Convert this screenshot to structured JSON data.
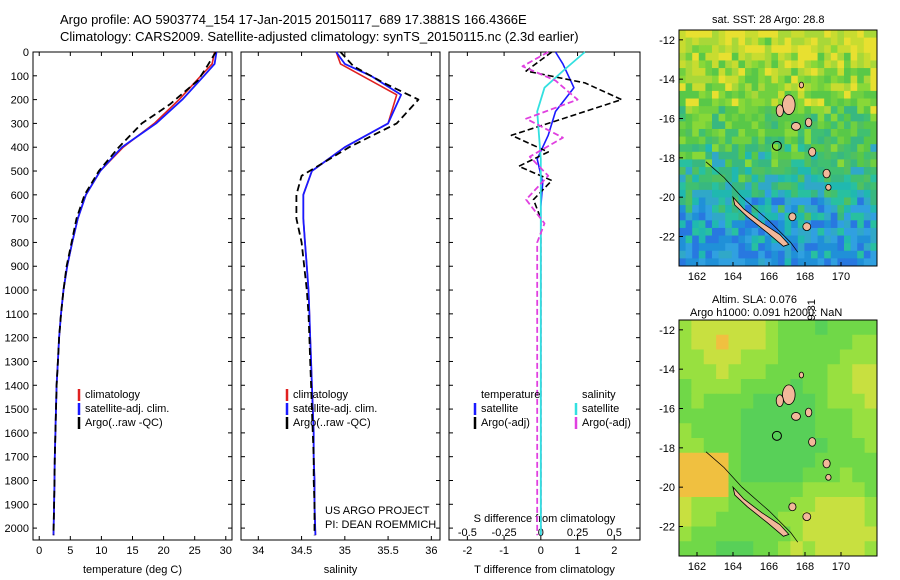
{
  "header": {
    "title_line1": "Argo profile: AO 5903774_154 17-Jan-2015 20150117_689 17.3881S 166.4366E",
    "title_line2": "Climatology: CARS2009. Satellite-adjusted climatology: synTS_20150115.nc (2.3d earlier)"
  },
  "colors": {
    "climatology": "#e02020",
    "satellite": "#1a1aff",
    "argo": "#000000",
    "salinity_satellite": "#33e0e0",
    "salinity_argo": "#e040e0",
    "land": "#f2b89a"
  },
  "chart_data": [
    {
      "type": "line",
      "id": "temperature_profile",
      "xlabel": "temperature (deg C)",
      "xlim": [
        -1,
        31
      ],
      "xticks": [
        0,
        5,
        10,
        15,
        20,
        25,
        30
      ],
      "ylim": [
        2050,
        0
      ],
      "yticks": [
        0,
        100,
        200,
        300,
        400,
        500,
        600,
        700,
        800,
        900,
        1000,
        1100,
        1200,
        1300,
        1400,
        1500,
        1600,
        1700,
        1800,
        1900,
        2000
      ],
      "legend": [
        "climatology",
        "satellite-adj. clim.",
        "Argo(..raw -QC)"
      ],
      "series": [
        {
          "name": "climatology",
          "x": [
            28.2,
            27.8,
            26.0,
            22.5,
            18.5,
            13.5,
            9.8,
            7.5,
            6.2,
            5.3,
            4.5,
            3.9,
            3.5,
            3.2,
            3.0,
            2.8,
            2.7,
            2.6,
            2.5,
            2.45,
            2.4,
            2.3
          ],
          "depth": [
            0,
            50,
            100,
            200,
            300,
            400,
            500,
            600,
            700,
            800,
            900,
            1000,
            1100,
            1200,
            1300,
            1400,
            1500,
            1600,
            1700,
            1800,
            1900,
            2030
          ]
        },
        {
          "name": "satellite-adj. clim.",
          "x": [
            28.5,
            28.2,
            26.5,
            23.0,
            18.8,
            13.3,
            9.8,
            7.5,
            6.2,
            5.3,
            4.5,
            3.9,
            3.5,
            3.2,
            3.0,
            2.8,
            2.7,
            2.6,
            2.5,
            2.45,
            2.4,
            2.3
          ],
          "depth": [
            0,
            50,
            100,
            200,
            300,
            400,
            500,
            600,
            700,
            800,
            900,
            1000,
            1100,
            1200,
            1300,
            1400,
            1500,
            1600,
            1700,
            1800,
            1900,
            2030
          ]
        },
        {
          "name": "Argo(..raw -QC)",
          "x": [
            28.4,
            27.0,
            25.5,
            21.0,
            16.5,
            12.8,
            9.6,
            7.3,
            6.0,
            5.2,
            4.4,
            3.9,
            3.5,
            3.2,
            3.0,
            2.8,
            2.7,
            2.6,
            2.5,
            2.45,
            2.4,
            2.3
          ],
          "depth": [
            0,
            60,
            120,
            220,
            300,
            400,
            500,
            600,
            700,
            800,
            900,
            1000,
            1100,
            1200,
            1300,
            1400,
            1500,
            1600,
            1700,
            1800,
            1900,
            2030
          ]
        }
      ]
    },
    {
      "type": "line",
      "id": "salinity_profile",
      "xlabel": "salinity",
      "xlim": [
        33.8,
        36.1
      ],
      "xticks": [
        34,
        34.5,
        35,
        35.5,
        36
      ],
      "ylim": [
        2050,
        0
      ],
      "legend": [
        "climatology",
        "satellite-adj. clim.",
        "Argo(..raw -QC)"
      ],
      "series": [
        {
          "name": "climatology",
          "x": [
            34.9,
            34.95,
            35.2,
            35.6,
            35.5,
            35.0,
            34.62,
            34.52,
            34.52,
            34.54,
            34.56,
            34.58,
            34.59,
            34.6,
            34.61,
            34.62,
            34.63,
            34.64,
            34.64,
            34.65,
            34.65,
            34.66
          ],
          "depth": [
            0,
            50,
            100,
            180,
            300,
            400,
            500,
            600,
            700,
            800,
            900,
            1000,
            1100,
            1200,
            1300,
            1400,
            1500,
            1600,
            1700,
            1800,
            1900,
            2030
          ]
        },
        {
          "name": "satellite-adj. clim.",
          "x": [
            34.9,
            35.0,
            35.3,
            35.65,
            35.5,
            35.0,
            34.62,
            34.52,
            34.52,
            34.54,
            34.56,
            34.58,
            34.59,
            34.6,
            34.61,
            34.62,
            34.63,
            34.64,
            34.64,
            34.65,
            34.65,
            34.66
          ],
          "depth": [
            0,
            50,
            100,
            180,
            300,
            400,
            500,
            600,
            700,
            800,
            900,
            1000,
            1100,
            1200,
            1300,
            1400,
            1500,
            1600,
            1700,
            1800,
            1900,
            2030
          ]
        },
        {
          "name": "Argo(..raw -QC)",
          "x": [
            34.95,
            35.1,
            35.45,
            35.85,
            35.6,
            35.05,
            34.5,
            34.44,
            34.44,
            34.5,
            34.53,
            34.56,
            34.58,
            34.59,
            34.6,
            34.61,
            34.62,
            34.63,
            34.64,
            34.64,
            34.65,
            34.65
          ],
          "depth": [
            0,
            60,
            130,
            200,
            300,
            400,
            520,
            600,
            700,
            800,
            900,
            1000,
            1100,
            1200,
            1300,
            1400,
            1500,
            1600,
            1700,
            1800,
            1900,
            2030
          ]
        }
      ]
    },
    {
      "type": "line",
      "id": "difference_profile",
      "xlabel": "T difference from climatology",
      "xlabel_top": "S difference from climatology",
      "xlim": [
        -2.5,
        2.7
      ],
      "xticks": [
        -2,
        -1,
        0,
        1,
        2
      ],
      "xticks_top_labels": [
        "-0.5",
        "-0.25",
        "0",
        "0.25",
        "0.5"
      ],
      "xticks_top_pos": [
        -2,
        -1,
        0,
        1,
        2
      ],
      "ylim": [
        2050,
        0
      ],
      "legend_temperature": {
        "heading": "temperature",
        "items": [
          "satellite",
          "Argo(-adj)"
        ]
      },
      "legend_salinity": {
        "heading": "salinity",
        "items": [
          "satellite",
          "Argo(-adj)"
        ]
      },
      "series": [
        {
          "name": "temperature satellite",
          "x": [
            0.4,
            0.6,
            0.9,
            0.4,
            0.2,
            -0.1,
            0.05,
            0,
            0,
            0,
            0,
            0,
            0,
            0,
            0,
            0,
            0,
            0,
            0,
            0,
            0
          ],
          "depth": [
            0,
            50,
            150,
            250,
            350,
            450,
            550,
            650,
            750,
            850,
            950,
            1050,
            1200,
            1350,
            1500,
            1650,
            1800,
            1900,
            1950,
            2000,
            2030
          ]
        },
        {
          "name": "temperature Argo(-adj)",
          "x": [
            0.3,
            -0.4,
            1.2,
            2.2,
            1.0,
            -0.8,
            0.2,
            -0.6,
            0.3,
            -0.2,
            0,
            0,
            0,
            0,
            0,
            0,
            0,
            0,
            0,
            0,
            0
          ],
          "depth": [
            0,
            80,
            130,
            200,
            260,
            350,
            420,
            480,
            540,
            620,
            700,
            800,
            900,
            1000,
            1200,
            1400,
            1600,
            1800,
            1900,
            2000,
            2030
          ]
        },
        {
          "name": "salinity satellite",
          "x": [
            1.2,
            0.6,
            0.1,
            -0.1,
            -0.05,
            0,
            0,
            0,
            0,
            0,
            0,
            0,
            0,
            0,
            0,
            0,
            0,
            0,
            0,
            0,
            0
          ],
          "depth": [
            0,
            80,
            150,
            250,
            350,
            450,
            550,
            650,
            750,
            850,
            950,
            1050,
            1200,
            1350,
            1500,
            1650,
            1800,
            1900,
            1950,
            2000,
            2030
          ]
        },
        {
          "name": "salinity Argo(-adj)",
          "x": [
            0.2,
            -0.5,
            0.4,
            1.0,
            -0.4,
            0.6,
            -0.3,
            0.2,
            -0.4,
            0.1,
            -0.1,
            -0.1,
            -0.1,
            -0.1,
            -0.1,
            -0.1,
            -0.1,
            -0.1,
            -0.1,
            -0.1,
            -0.1
          ],
          "depth": [
            0,
            60,
            120,
            200,
            280,
            360,
            440,
            520,
            620,
            720,
            800,
            900,
            1000,
            1200,
            1400,
            1600,
            1800,
            1900,
            1950,
            2000,
            2030
          ]
        }
      ]
    },
    {
      "type": "heatmap",
      "id": "sst_map",
      "title": "sat. SST: 28  Argo: 28.8",
      "xlim": [
        161,
        172
      ],
      "xticks": [
        162,
        164,
        166,
        168,
        170
      ],
      "ylim": [
        -23.5,
        -11.5
      ],
      "yticks": [
        -12,
        -14,
        -16,
        -18,
        -20,
        -22
      ],
      "argo_position": {
        "lon": 166.44,
        "lat": -17.39
      }
    },
    {
      "type": "heatmap",
      "id": "sla_map",
      "title": "Altim. SLA: 0.076",
      "subtitle": "Argo h1000: 0.091  h2000: NaN",
      "xlim": [
        161,
        172
      ],
      "xticks": [
        162,
        164,
        166,
        168,
        170
      ],
      "ylim": [
        -23.5,
        -11.5
      ],
      "yticks": [
        -12,
        -14,
        -16,
        -18,
        -20,
        -22
      ],
      "argo_position": {
        "lon": 166.44,
        "lat": -17.39
      }
    }
  ],
  "annotations": {
    "project_line1": "US ARGO PROJECT",
    "project_line2": "PI: DEAN ROEMMICH",
    "credit": "©IMOS 22-Jan-2015 20:39:31"
  }
}
